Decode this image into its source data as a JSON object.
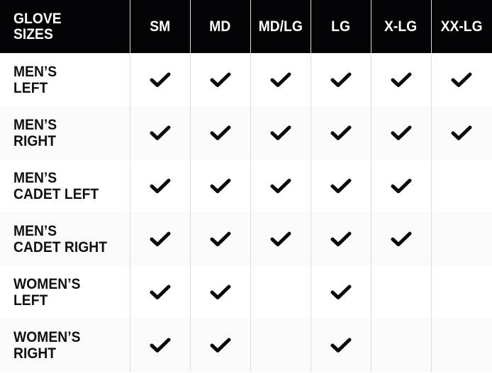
{
  "header": {
    "title_line1": "GLOVE",
    "title_line2": "SIZES",
    "sizes": [
      "SM",
      "MD",
      "MD/LG",
      "LG",
      "X-LG",
      "XX-LG"
    ]
  },
  "rows": [
    {
      "line1": "MEN’S",
      "line2": "LEFT",
      "available": [
        true,
        true,
        true,
        true,
        true,
        true
      ]
    },
    {
      "line1": "MEN’S",
      "line2": "RIGHT",
      "available": [
        true,
        true,
        true,
        true,
        true,
        true
      ]
    },
    {
      "line1": "MEN’S",
      "line2": "CADET LEFT",
      "available": [
        true,
        true,
        true,
        true,
        true,
        false
      ]
    },
    {
      "line1": "MEN’S",
      "line2": "CADET RIGHT",
      "available": [
        true,
        true,
        true,
        true,
        true,
        false
      ]
    },
    {
      "line1": "WOMEN’S",
      "line2": "LEFT",
      "available": [
        true,
        true,
        false,
        true,
        false,
        false
      ]
    },
    {
      "line1": "WOMEN’S",
      "line2": "RIGHT",
      "available": [
        true,
        true,
        false,
        true,
        false,
        false
      ]
    }
  ],
  "icons": {
    "available": "check-icon"
  },
  "colors": {
    "header_bg": "#040406",
    "alt_row": "#fafafa",
    "divider": "#dcdcdc"
  }
}
